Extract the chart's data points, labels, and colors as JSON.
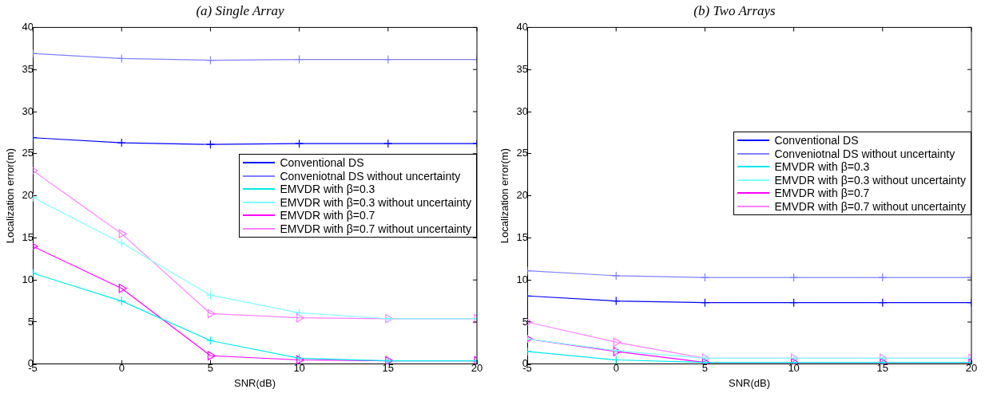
{
  "chart_data": [
    {
      "type": "line",
      "title": "(a) Single Array",
      "xlabel": "SNR(dB)",
      "ylabel": "Localization error(m)",
      "x": [
        -5,
        0,
        5,
        10,
        15,
        20
      ],
      "xlim": [
        -5,
        20
      ],
      "xticks": [
        -5,
        0,
        5,
        10,
        15,
        20
      ],
      "ylim": [
        0,
        40
      ],
      "yticks": [
        0,
        5,
        10,
        15,
        20,
        25,
        30,
        35,
        40
      ],
      "grid": false,
      "legend": "right",
      "series": [
        {
          "name": "Conventional DS",
          "color": "#0000ff",
          "marker": "cross",
          "values": [
            26.9,
            26.3,
            26.1,
            26.2,
            26.2,
            26.2
          ]
        },
        {
          "name": "Conveniotnal DS without uncertainty",
          "color": "#8080ff",
          "marker": "cross",
          "values": [
            36.9,
            36.3,
            36.1,
            36.2,
            36.2,
            36.2
          ]
        },
        {
          "name": "EMVDR with β=0.3",
          "color": "#00e8e8",
          "marker": "cross",
          "values": [
            10.8,
            7.5,
            2.8,
            0.7,
            0.4,
            0.4
          ]
        },
        {
          "name": "EMVDR with β=0.3 without uncertainty",
          "color": "#80ffff",
          "marker": "cross",
          "values": [
            19.8,
            14.4,
            8.2,
            6.1,
            5.4,
            5.4
          ]
        },
        {
          "name": "EMVDR with β=0.7",
          "color": "#ff00ff",
          "marker": "triangle",
          "values": [
            14,
            9,
            1,
            0.5,
            0.4,
            0.4
          ]
        },
        {
          "name": "EMVDR with β=0.7 without uncertainty",
          "color": "#ff80ff",
          "marker": "triangle",
          "values": [
            23,
            15.5,
            6,
            5.5,
            5.4,
            5.4
          ]
        }
      ]
    },
    {
      "type": "line",
      "title": "(b) Two Arrays",
      "xlabel": "SNR(dB)",
      "ylabel": "Localization error(m)",
      "x": [
        -5,
        0,
        5,
        10,
        15,
        20
      ],
      "xlim": [
        -5,
        20
      ],
      "xticks": [
        -5,
        0,
        5,
        10,
        15,
        20
      ],
      "ylim": [
        0,
        40
      ],
      "yticks": [
        0,
        5,
        10,
        15,
        20,
        25,
        30,
        35,
        40
      ],
      "grid": false,
      "legend": "right",
      "series": [
        {
          "name": "Conventional DS",
          "color": "#0000ff",
          "marker": "cross",
          "values": [
            8.1,
            7.5,
            7.3,
            7.3,
            7.3,
            7.3
          ]
        },
        {
          "name": "Conveniotnal DS without uncertainty",
          "color": "#8080ff",
          "marker": "cross",
          "values": [
            11.1,
            10.5,
            10.3,
            10.3,
            10.3,
            10.3
          ]
        },
        {
          "name": "EMVDR with β=0.3",
          "color": "#00e8e8",
          "marker": "cross",
          "values": [
            1.5,
            0.5,
            0.2,
            0.2,
            0.2,
            0.2
          ]
        },
        {
          "name": "EMVDR with β=0.3 without uncertainty",
          "color": "#80ffff",
          "marker": "cross",
          "values": [
            3,
            1.6,
            0.7,
            0.7,
            0.7,
            0.7
          ]
        },
        {
          "name": "EMVDR with β=0.7",
          "color": "#ff00ff",
          "marker": "triangle",
          "values": [
            3,
            1.5,
            0.2,
            0.2,
            0.2,
            0.2
          ]
        },
        {
          "name": "EMVDR with β=0.7 without uncertainty",
          "color": "#ff80ff",
          "marker": "triangle",
          "values": [
            5,
            2.6,
            0.7,
            0.7,
            0.7,
            0.7
          ]
        }
      ]
    }
  ]
}
